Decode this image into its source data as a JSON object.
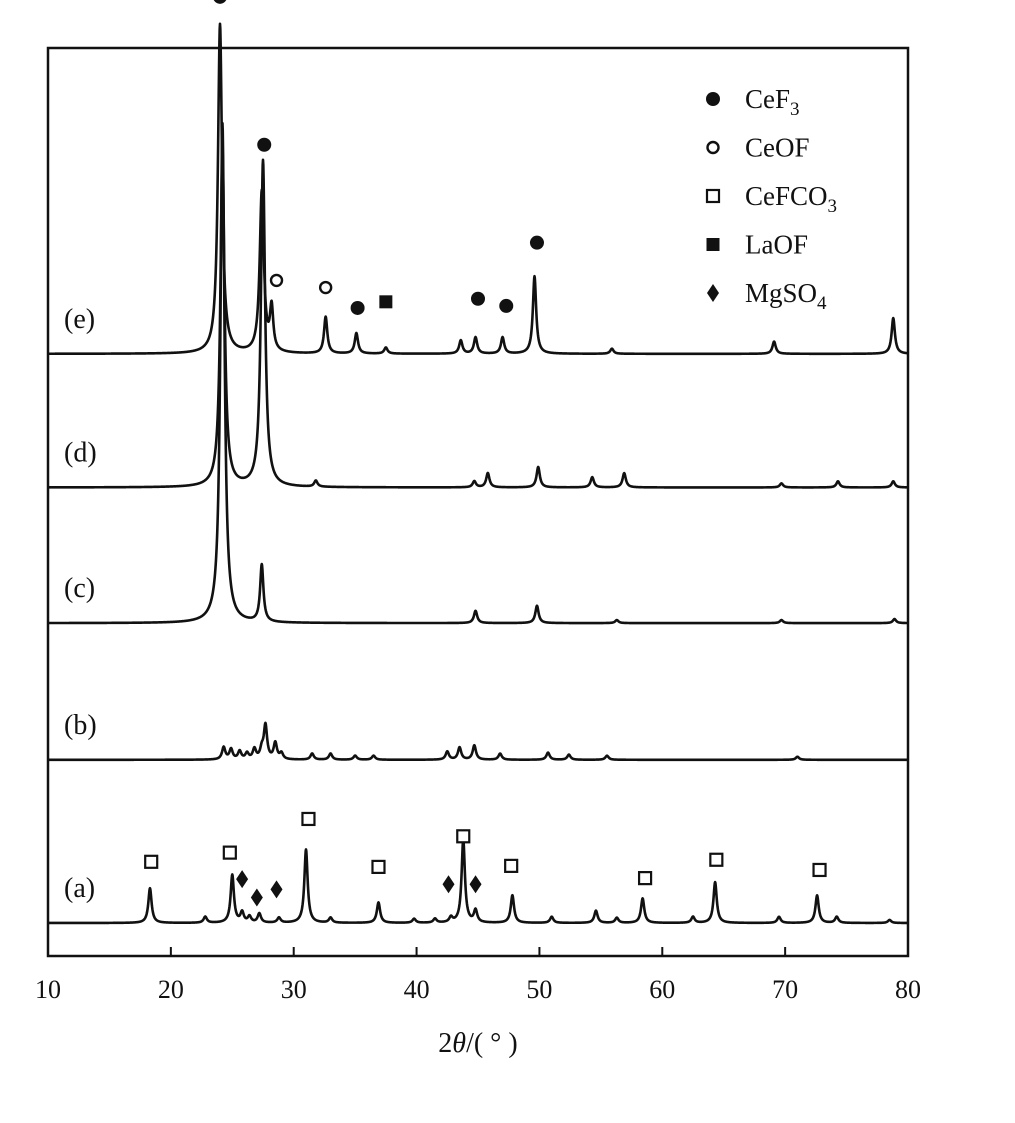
{
  "chart_data": {
    "type": "line",
    "xlabel": "2θ/( ° )",
    "xlabel_parts": {
      "italic": "θ",
      "prefix": "2",
      "suffix": "/( ° )"
    },
    "xlim": [
      10,
      80
    ],
    "xticks": [
      10,
      20,
      30,
      40,
      50,
      60,
      70,
      80
    ],
    "y_axis_ticks": false,
    "legend": {
      "placement": "top-right",
      "entries": [
        {
          "marker": "filled-circle",
          "label": "CeF",
          "sub": "3"
        },
        {
          "marker": "open-circle",
          "label": "CeOF",
          "sub": ""
        },
        {
          "marker": "open-square",
          "label": "CeFCO",
          "sub": "3"
        },
        {
          "marker": "filled-square",
          "label": "LaOF",
          "sub": ""
        },
        {
          "marker": "filled-diamond",
          "label": "MgSO",
          "sub": "4"
        }
      ]
    },
    "series": [
      {
        "name": "(a)",
        "baseline": 0,
        "peaks": [
          [
            18.3,
            0.34
          ],
          [
            22.8,
            0.06
          ],
          [
            25.0,
            0.47
          ],
          [
            25.8,
            0.1
          ],
          [
            26.4,
            0.06
          ],
          [
            27.2,
            0.09
          ],
          [
            28.8,
            0.05
          ],
          [
            31.0,
            0.72
          ],
          [
            33.0,
            0.05
          ],
          [
            36.9,
            0.2
          ],
          [
            39.8,
            0.04
          ],
          [
            41.5,
            0.04
          ],
          [
            42.8,
            0.05
          ],
          [
            43.8,
            0.82
          ],
          [
            44.8,
            0.12
          ],
          [
            47.8,
            0.27
          ],
          [
            51.0,
            0.06
          ],
          [
            54.6,
            0.12
          ],
          [
            56.3,
            0.05
          ],
          [
            58.4,
            0.24
          ],
          [
            62.5,
            0.06
          ],
          [
            64.3,
            0.4
          ],
          [
            69.5,
            0.06
          ],
          [
            72.6,
            0.27
          ],
          [
            74.2,
            0.06
          ],
          [
            78.5,
            0.03
          ]
        ],
        "markers": [
          {
            "type": "open-square",
            "x": 18.4,
            "y": 0.6
          },
          {
            "type": "open-square",
            "x": 24.8,
            "y": 0.69
          },
          {
            "type": "filled-diamond",
            "x": 25.8,
            "y": 0.43
          },
          {
            "type": "filled-diamond",
            "x": 27.0,
            "y": 0.25
          },
          {
            "type": "filled-diamond",
            "x": 28.6,
            "y": 0.33
          },
          {
            "type": "open-square",
            "x": 31.2,
            "y": 1.02
          },
          {
            "type": "open-square",
            "x": 36.9,
            "y": 0.55
          },
          {
            "type": "filled-diamond",
            "x": 42.6,
            "y": 0.38
          },
          {
            "type": "open-square",
            "x": 43.8,
            "y": 0.85
          },
          {
            "type": "filled-diamond",
            "x": 44.8,
            "y": 0.38
          },
          {
            "type": "open-square",
            "x": 47.7,
            "y": 0.56
          },
          {
            "type": "open-square",
            "x": 58.6,
            "y": 0.44
          },
          {
            "type": "open-square",
            "x": 64.4,
            "y": 0.62
          },
          {
            "type": "open-square",
            "x": 72.8,
            "y": 0.52
          }
        ]
      },
      {
        "name": "(b)",
        "baseline": 1.6,
        "peaks": [
          [
            24.3,
            0.12
          ],
          [
            24.9,
            0.1
          ],
          [
            25.6,
            0.08
          ],
          [
            26.2,
            0.06
          ],
          [
            26.8,
            0.1
          ],
          [
            27.4,
            0.09
          ],
          [
            27.7,
            0.33
          ],
          [
            28.5,
            0.16
          ],
          [
            29.0,
            0.06
          ],
          [
            31.5,
            0.06
          ],
          [
            33.0,
            0.06
          ],
          [
            35.0,
            0.04
          ],
          [
            36.5,
            0.04
          ],
          [
            42.5,
            0.08
          ],
          [
            43.5,
            0.12
          ],
          [
            44.7,
            0.14
          ],
          [
            46.8,
            0.06
          ],
          [
            50.7,
            0.07
          ],
          [
            52.4,
            0.05
          ],
          [
            55.5,
            0.04
          ],
          [
            71.0,
            0.03
          ]
        ],
        "markers": []
      },
      {
        "name": "(c)",
        "baseline": 2.94,
        "peaks": [
          [
            24.2,
            4.9
          ],
          [
            27.4,
            0.56
          ],
          [
            44.8,
            0.12
          ],
          [
            49.8,
            0.17
          ],
          [
            56.3,
            0.03
          ],
          [
            69.7,
            0.03
          ],
          [
            78.9,
            0.04
          ]
        ],
        "markers": []
      },
      {
        "name": "(d)",
        "baseline": 4.27,
        "peaks": [
          [
            24.2,
            3.3
          ],
          [
            27.5,
            3.2
          ],
          [
            31.8,
            0.06
          ],
          [
            44.7,
            0.06
          ],
          [
            45.8,
            0.14
          ],
          [
            49.9,
            0.2
          ],
          [
            54.3,
            0.1
          ],
          [
            56.9,
            0.14
          ],
          [
            69.7,
            0.04
          ],
          [
            74.3,
            0.06
          ],
          [
            78.8,
            0.06
          ]
        ],
        "markers": []
      },
      {
        "name": "(e)",
        "baseline": 5.58,
        "peaks": [
          [
            24.0,
            3.23
          ],
          [
            27.4,
            1.58
          ],
          [
            28.2,
            0.42
          ],
          [
            32.6,
            0.36
          ],
          [
            35.1,
            0.2
          ],
          [
            37.5,
            0.06
          ],
          [
            43.6,
            0.13
          ],
          [
            44.8,
            0.16
          ],
          [
            47.0,
            0.16
          ],
          [
            49.6,
            0.76
          ],
          [
            55.9,
            0.05
          ],
          [
            69.1,
            0.12
          ],
          [
            78.8,
            0.35
          ]
        ],
        "markers": [
          {
            "type": "filled-circle",
            "x": 24.0,
            "y": 3.5
          },
          {
            "type": "filled-circle",
            "x": 27.6,
            "y": 2.05
          },
          {
            "type": "open-circle",
            "x": 28.6,
            "y": 0.72
          },
          {
            "type": "open-circle",
            "x": 32.6,
            "y": 0.65
          },
          {
            "type": "filled-circle",
            "x": 35.2,
            "y": 0.45
          },
          {
            "type": "filled-square",
            "x": 37.5,
            "y": 0.51
          },
          {
            "type": "filled-circle",
            "x": 45.0,
            "y": 0.54
          },
          {
            "type": "filled-circle",
            "x": 47.3,
            "y": 0.47
          },
          {
            "type": "filled-circle",
            "x": 49.8,
            "y": 1.09
          }
        ]
      }
    ]
  }
}
